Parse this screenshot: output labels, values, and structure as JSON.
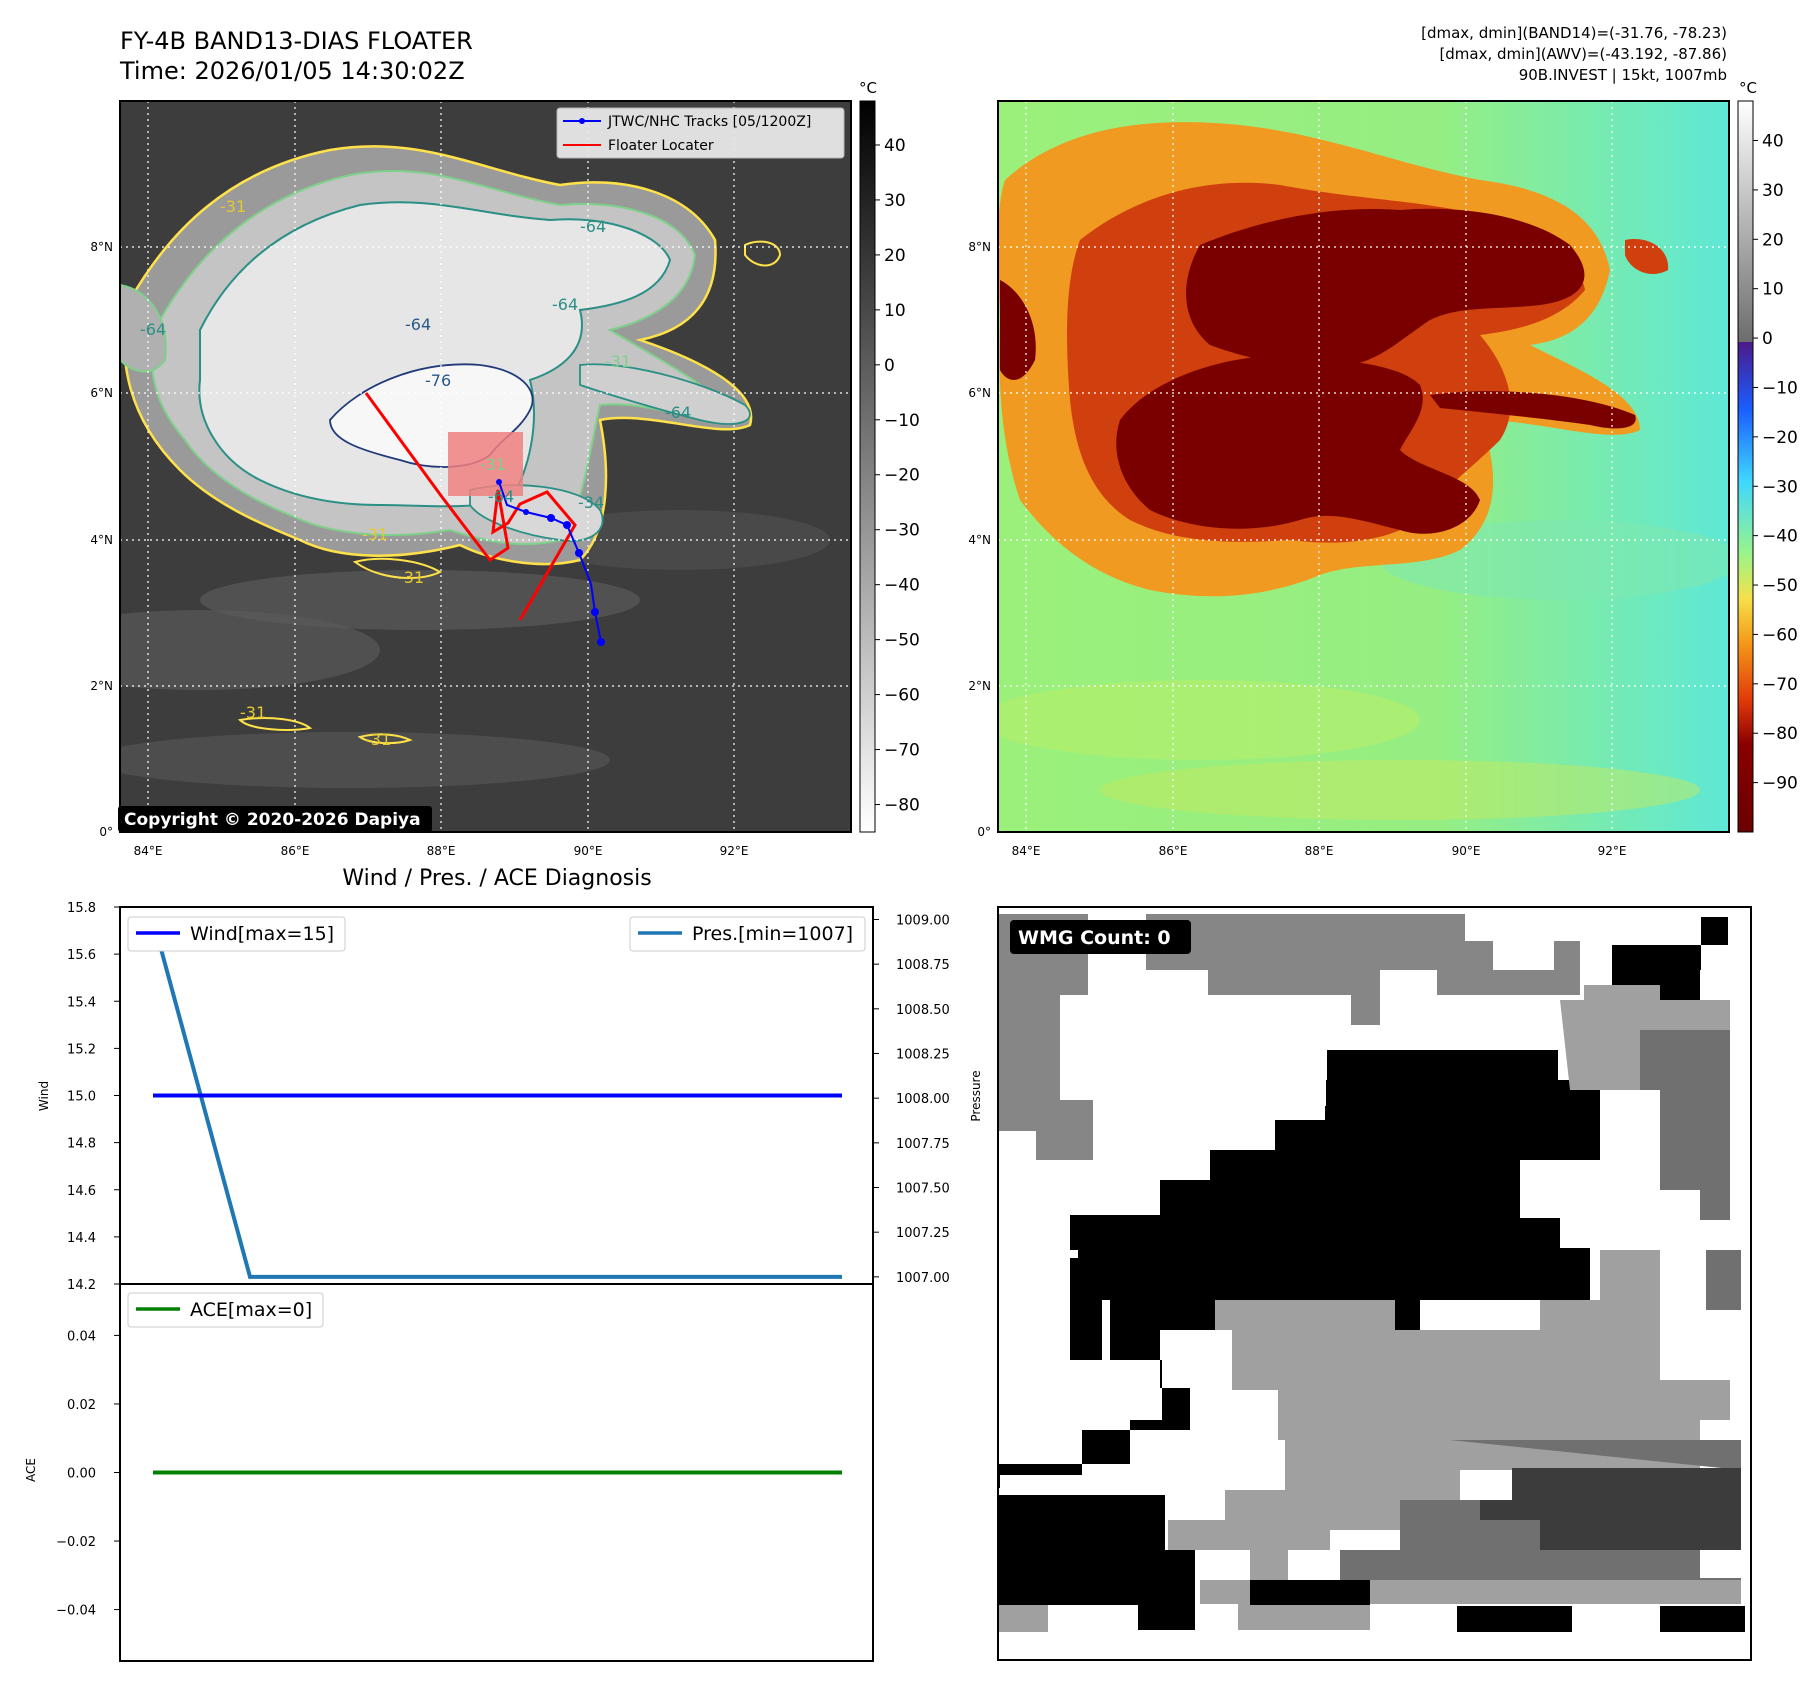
{
  "header": {
    "title_line1": "FY-4B BAND13-DIAS FLOATER",
    "title_line2": "Time: 2026/01/05 14:30:02Z",
    "stats_line1": "[dmax, dmin](BAND14)=(-31.76, -78.23)",
    "stats_line2": "[dmax, dmin](AWV)=(-43.192, -87.86)",
    "stats_line3": "90B.INVEST | 15kt, 1007mb"
  },
  "copyright": "Copyright © 2020-2026 Dapiya",
  "map": {
    "lon_labels": [
      "84°E",
      "86°E",
      "88°E",
      "90°E",
      "92°E"
    ],
    "lat_labels": [
      "8°N",
      "6°N",
      "4°N",
      "2°N",
      "0°"
    ],
    "legend": {
      "tracks": "JTWC/NHC Tracks [05/1200Z]",
      "floater": "Floater Locater"
    },
    "contour_labels": [
      "-31",
      "-31",
      "-31",
      "-31",
      "-31",
      "-64",
      "-64",
      "-64",
      "-76",
      "-64",
      "-64",
      "-34",
      "-64",
      "-31",
      "-31"
    ],
    "colors": {
      "track": "#0000ff",
      "floater": "#ff0000",
      "floater_box": "#f08080",
      "contour_yellow": "#ffe14a",
      "contour_green": "#7ed08a",
      "contour_teal": "#2a8f84",
      "contour_navy": "#203a7a"
    }
  },
  "colorbar_ir": {
    "unit": "°C",
    "ticks": [
      "40",
      "30",
      "20",
      "10",
      "0",
      "−10",
      "−20",
      "−30",
      "−40",
      "−50",
      "−60",
      "−70",
      "−80"
    ]
  },
  "colorbar_wv": {
    "unit": "°C",
    "ticks": [
      "40",
      "30",
      "20",
      "10",
      "0",
      "−10",
      "−20",
      "−30",
      "−40",
      "−50",
      "−60",
      "−70",
      "−80",
      "−90"
    ]
  },
  "diagnosis": {
    "title": "Wind / Pres. / ACE Diagnosis"
  },
  "wmg": {
    "label": "WMG Count: 0",
    "ylabel": "Pressure"
  },
  "chart_data": [
    {
      "type": "line",
      "title": "Wind / Pres. / ACE Diagnosis",
      "ylabel": "Wind",
      "ylim": [
        14.2,
        15.8
      ],
      "yticks": [
        "15.8",
        "15.6",
        "15.4",
        "15.2",
        "15.0",
        "14.8",
        "14.6",
        "14.4",
        "14.2"
      ],
      "series": [
        {
          "name": "Wind[max=15]",
          "color": "#0000ff",
          "values": [
            15,
            15
          ]
        }
      ],
      "secondary_axis": {
        "ylim": [
          1006.96,
          1009.07
        ],
        "yticks": [
          "1009.00",
          "1008.75",
          "1008.50",
          "1008.25",
          "1008.00",
          "1007.75",
          "1007.50",
          "1007.25",
          "1007.00"
        ],
        "series": [
          {
            "name": "Pres.[min=1007]",
            "color": "#1f77b4",
            "values": [
              1009,
              1007,
              1007
            ]
          }
        ]
      }
    },
    {
      "type": "line",
      "ylabel": "ACE",
      "ylim": [
        -0.055,
        0.055
      ],
      "yticks": [
        "0.04",
        "0.02",
        "0.00",
        "−0.02",
        "−0.04"
      ],
      "series": [
        {
          "name": "ACE[max=0]",
          "color": "#008000",
          "values": [
            0,
            0
          ]
        }
      ]
    }
  ]
}
